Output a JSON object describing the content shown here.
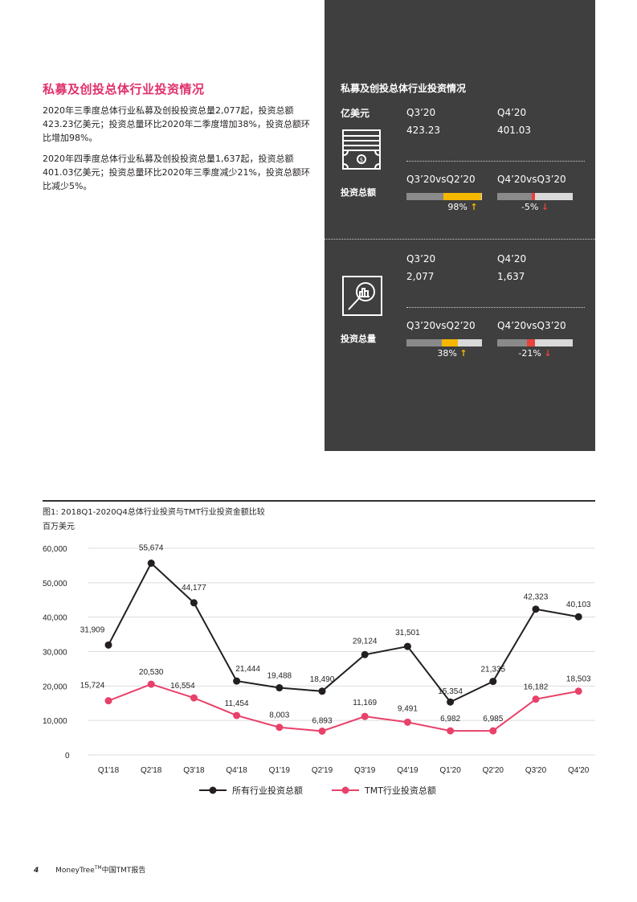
{
  "left": {
    "title": "私募及创投总体行业投资情况",
    "paragraphs": [
      "2020年三季度总体行业私募及创投投资总量2,077起，投资总额423.23亿美元；投资总量环比2020年二季度增加38%，投资总额环比增加98%。",
      "2020年四季度总体行业私募及创投投资总量1,637起，投资总额401.03亿美元；投资总量环比2020年三季度减少21%，投资总额环比减少5%。"
    ]
  },
  "panel": {
    "title": "私募及创投总体行业投资情况",
    "unit": "亿美元",
    "amount": {
      "label": "投资总额",
      "icon": "money-bill-icon",
      "q3_label": "Q3’20",
      "q4_label": "Q4’20",
      "q3_value": "423.23",
      "q4_value": "401.03",
      "cmp1_label": "Q3’20vsQ2’20",
      "cmp2_label": "Q4’20vsQ3’20",
      "cmp1_pct": "98%",
      "cmp1_arrow": "↑",
      "cmp2_pct": "-5%",
      "cmp2_arrow": "↓"
    },
    "volume": {
      "label": "投资总量",
      "icon": "magnifier-chart-icon",
      "q3_label": "Q3’20",
      "q4_label": "Q4’20",
      "q3_value": "2,077",
      "q4_value": "1,637",
      "cmp1_label": "Q3’20vsQ2’20",
      "cmp2_label": "Q4’20vsQ3’20",
      "cmp1_pct": "38%",
      "cmp1_arrow": "↑",
      "cmp2_pct": "-21%",
      "cmp2_arrow": "↓"
    },
    "colors": {
      "background": "#3f3f3f",
      "increase": "#f5b800",
      "decrease": "#e8423c",
      "bar_base": "#8a8a8a",
      "bar_track": "#d9d9d9"
    }
  },
  "chart_data": {
    "type": "line",
    "title": "图1: 2018Q1-2020Q4总体行业投资与TMT行业投资金额比较",
    "ylabel": "百万美元",
    "xlabel": "",
    "categories": [
      "Q1'18",
      "Q2'18",
      "Q3'18",
      "Q4'18",
      "Q1'19",
      "Q2'19",
      "Q3'19",
      "Q4'19",
      "Q1'20",
      "Q2'20",
      "Q3'20",
      "Q4'20"
    ],
    "series": [
      {
        "name": "所有行业投资总额",
        "color": "#231f20",
        "values": [
          31909,
          55674,
          44177,
          21444,
          19488,
          18490,
          29124,
          31501,
          15354,
          21335,
          42323,
          40103
        ]
      },
      {
        "name": "TMT行业投资总额",
        "color": "#e8416a",
        "values": [
          15724,
          20530,
          16554,
          11454,
          8003,
          6893,
          11169,
          9491,
          6982,
          6985,
          16182,
          18503
        ]
      }
    ],
    "ylim": [
      0,
      60000
    ],
    "yticks": [
      "0",
      "10,000",
      "20,000",
      "30,000",
      "40,000",
      "50,000",
      "60,000"
    ],
    "grid": true,
    "legend_position": "bottom"
  },
  "footer": {
    "page": "4",
    "report": "MoneyTree",
    "tm": "TM",
    "report_suffix": "中国TMT报告"
  }
}
